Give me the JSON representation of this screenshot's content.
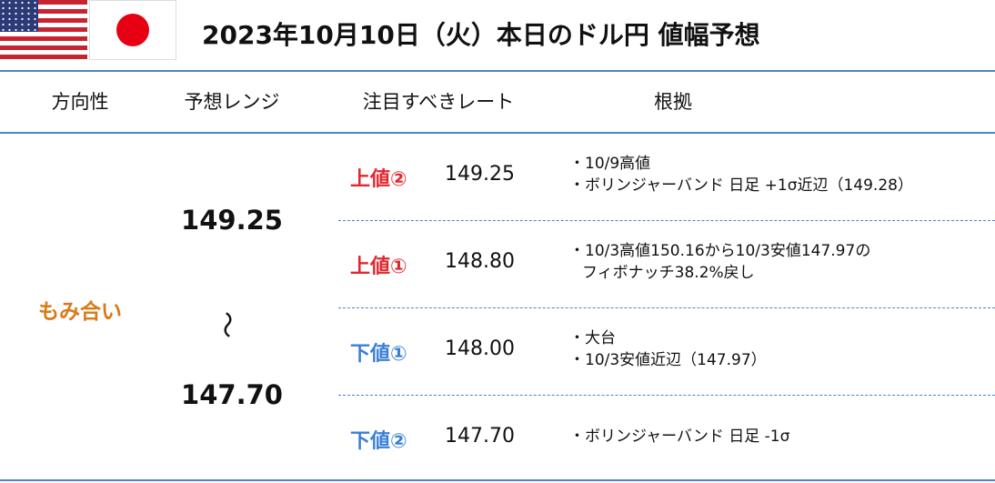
{
  "header": {
    "title": "2023年10月10日（火）本日のドル円 値幅予想"
  },
  "table": {
    "columns": [
      "方向性",
      "予想レンジ",
      "注目すべきレート",
      "根拠"
    ],
    "direction": {
      "text": "もみ合い",
      "color": "#d97a16"
    },
    "range": {
      "high": "149.25",
      "separator": "～",
      "low": "147.70"
    },
    "rows": [
      {
        "label": "上値②",
        "rate": "149.25",
        "color": "#e0282e",
        "notes": [
          "・10/9高値",
          "・ボリンジャーバンド 日足 +1σ近辺（149.28）"
        ]
      },
      {
        "label": "上値①",
        "rate": "148.80",
        "color": "#e0282e",
        "notes": [
          "・10/3高値150.16から10/3安値147.97の",
          "フィボナッチ38.2%戻し"
        ]
      },
      {
        "label": "下値①",
        "rate": "148.00",
        "color": "#3a7fd6",
        "notes": [
          "・大台",
          "・10/3安値近辺（147.97）"
        ]
      },
      {
        "label": "下値②",
        "rate": "147.70",
        "color": "#3a7fd6",
        "notes": [
          "・ボリンジャーバンド 日足 -1σ"
        ]
      }
    ]
  }
}
